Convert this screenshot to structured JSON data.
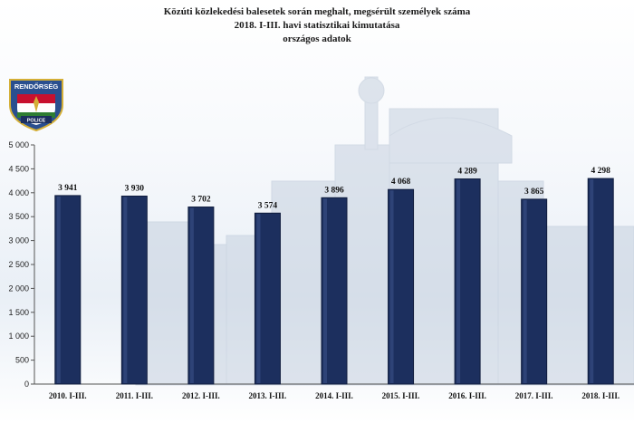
{
  "header": {
    "title": "Közúti közlekedési balesetek során meghalt, megsérült személyek száma",
    "subtitle": "2018. I-III. havi statisztikai kimutatása",
    "subtitle2": "országos adatok"
  },
  "logo": {
    "top_text": "RENDŐRSÉG",
    "bottom_text": "POLICE",
    "colors": {
      "shield": "#2a4f8f",
      "red": "#c8102e",
      "green": "#2e7d32",
      "gold": "#d4af37"
    }
  },
  "colors": {
    "bar": "#1c2f5e",
    "bar_edge": "#0f1c3d",
    "axis": "#555555",
    "building": "#c6d1df"
  },
  "chart_data": {
    "type": "bar",
    "title": "Közúti közlekedési balesetek során meghalt, megsérült személyek száma",
    "categories": [
      "2010. I-III.",
      "2011. I-III.",
      "2012. I-III.",
      "2013. I-III.",
      "2014. I-III.",
      "2015. I-III.",
      "2016. I-III.",
      "2017. I-III.",
      "2018. I-III."
    ],
    "values": [
      3941,
      3930,
      3702,
      3574,
      3896,
      4068,
      4289,
      3865,
      4298
    ],
    "value_labels": [
      "3 941",
      "3 930",
      "3 702",
      "3 574",
      "3 896",
      "4 068",
      "4 289",
      "3 865",
      "4 298"
    ],
    "ylim": [
      0,
      5000
    ],
    "yticks": [
      0,
      500,
      1000,
      1500,
      2000,
      2500,
      3000,
      3500,
      4000,
      4500,
      5000
    ],
    "ytick_labels": [
      "0",
      "500",
      "1 000",
      "1 500",
      "2 000",
      "2 500",
      "3 000",
      "3 500",
      "4 000",
      "4 500",
      "5 000"
    ],
    "xlabel": "",
    "ylabel": "",
    "grid": false,
    "legend": "none"
  }
}
